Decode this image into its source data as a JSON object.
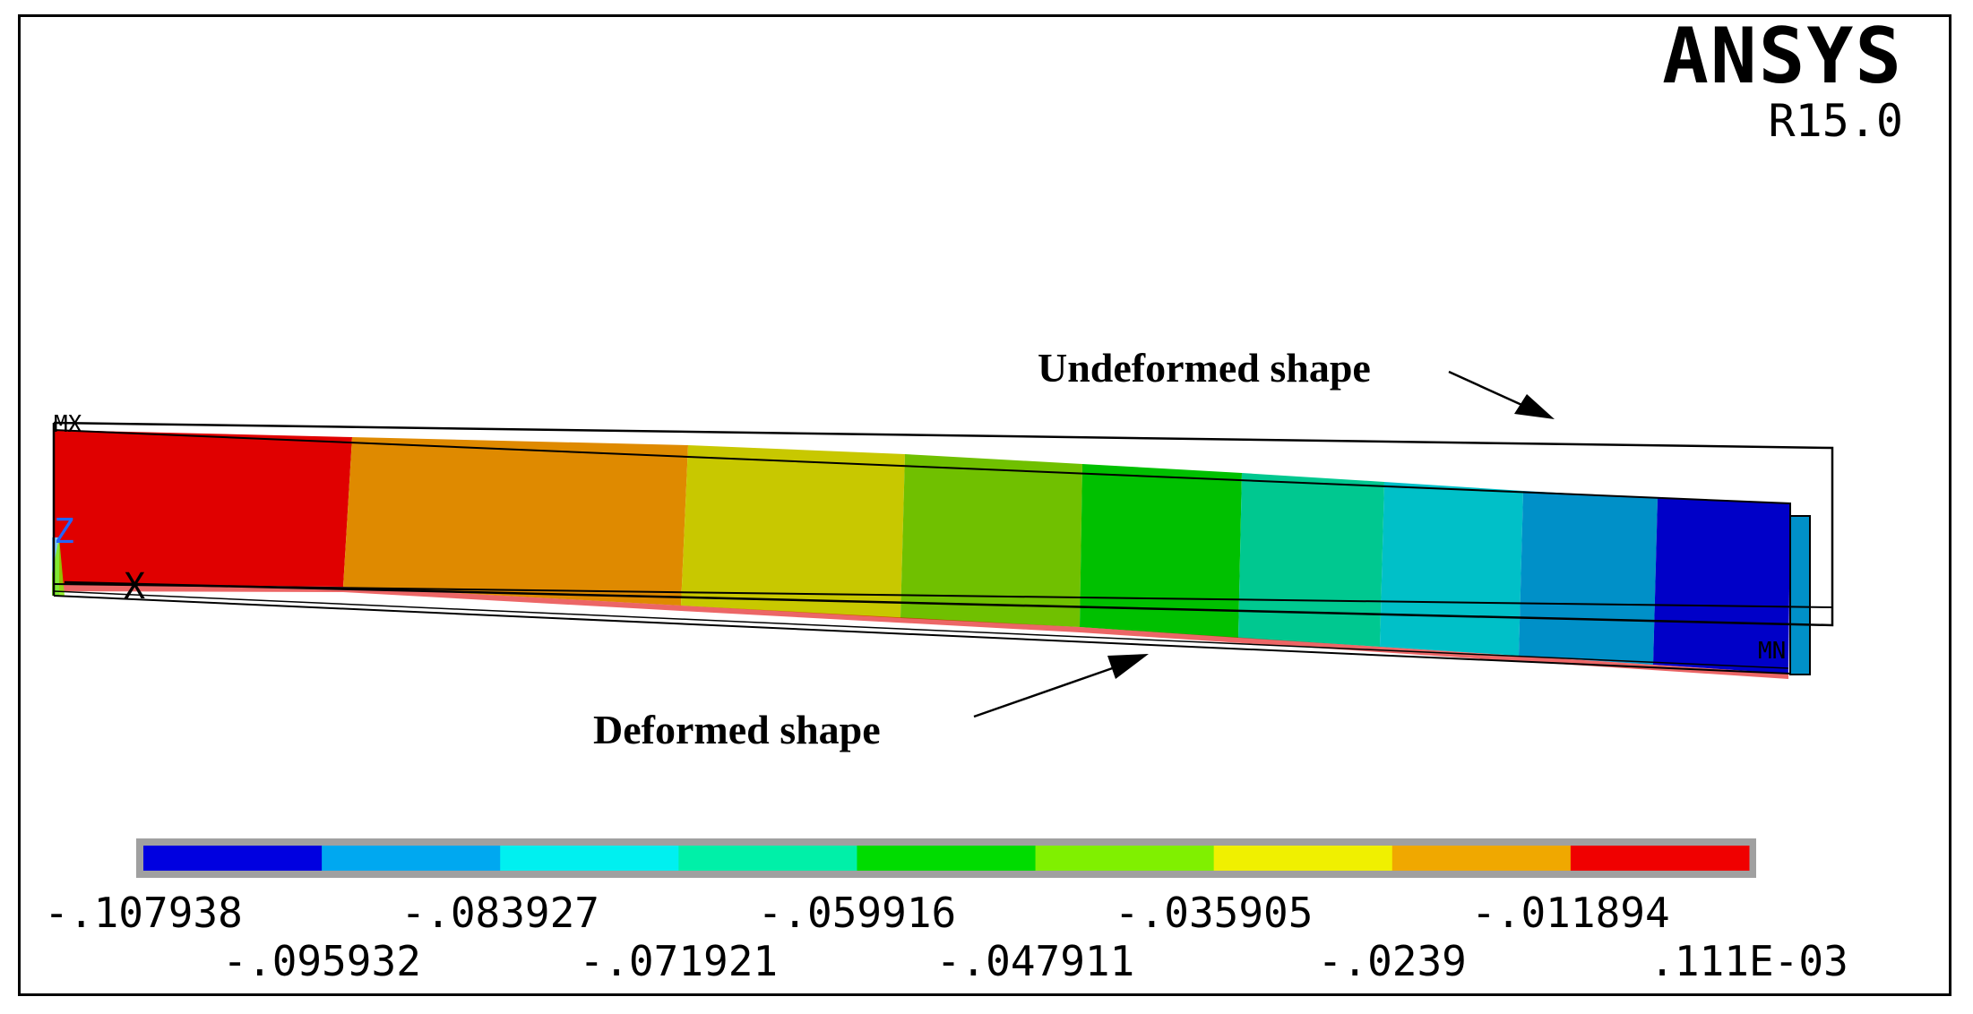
{
  "brand": {
    "name": "ANSYS",
    "release": "R15.0"
  },
  "labels": {
    "max_marker": "MX",
    "min_marker": "MN",
    "axis_z": "Z",
    "axis_x": "X"
  },
  "annotations": {
    "undeformed": "Undeformed shape",
    "deformed": "Deformed shape"
  },
  "legend": {
    "colors": [
      "#0000e0",
      "#00a8f0",
      "#00f0f0",
      "#00f0a8",
      "#00dc00",
      "#80f000",
      "#f0f000",
      "#f0a800",
      "#f00000"
    ],
    "top_ticks": [
      "-.107938",
      "-.083927",
      "-.059916",
      "-.035905",
      "-.011894"
    ],
    "bottom_ticks": [
      "-.095932",
      "-.071921",
      "-.047911",
      "-.0239",
      ".111E-03"
    ]
  },
  "beam": {
    "band_colors": [
      "#e00000",
      "#df8a00",
      "#c8c800",
      "#70c000",
      "#00c000",
      "#00c890",
      "#00c0c8",
      "#0090c8",
      "#0000c8"
    ]
  }
}
